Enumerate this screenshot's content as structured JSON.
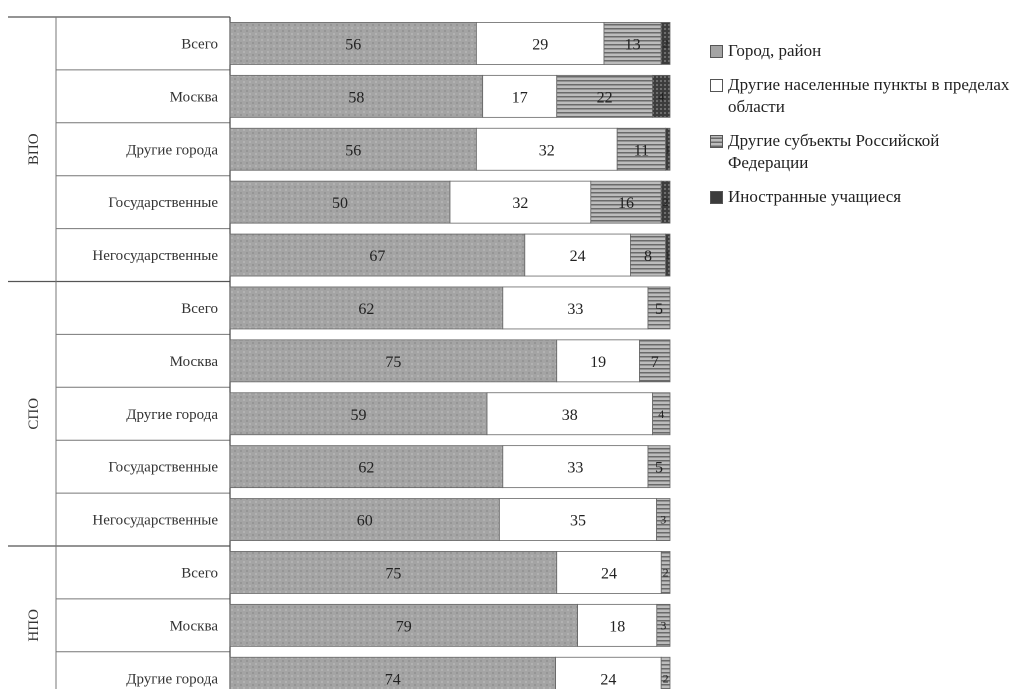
{
  "chart_data": {
    "type": "bar",
    "orientation": "horizontal",
    "stacked": true,
    "percent": true,
    "groups": [
      {
        "label": "ВПО",
        "rows": [
          {
            "label": "Всего",
            "values": [
              56,
              29,
              13,
              2
            ]
          },
          {
            "label": "Москва",
            "values": [
              58,
              17,
              22,
              4
            ]
          },
          {
            "label": "Другие города",
            "values": [
              56,
              32,
              11,
              1
            ]
          },
          {
            "label": "Государственные",
            "values": [
              50,
              32,
              16,
              2
            ]
          },
          {
            "label": "Негосударственные",
            "values": [
              67,
              24,
              8,
              1
            ]
          }
        ]
      },
      {
        "label": "СПО",
        "rows": [
          {
            "label": "Всего",
            "values": [
              62,
              33,
              5,
              0
            ]
          },
          {
            "label": "Москва",
            "values": [
              75,
              19,
              7,
              0
            ]
          },
          {
            "label": "Другие города",
            "values": [
              59,
              38,
              4,
              0
            ]
          },
          {
            "label": "Государственные",
            "values": [
              62,
              33,
              5,
              0
            ]
          },
          {
            "label": "Негосударственные",
            "values": [
              60,
              35,
              3,
              0
            ]
          }
        ]
      },
      {
        "label": "НПО",
        "rows": [
          {
            "label": "Всего",
            "values": [
              75,
              24,
              2,
              0
            ]
          },
          {
            "label": "Москва",
            "values": [
              79,
              18,
              3,
              0
            ]
          },
          {
            "label": "Другие города",
            "values": [
              74,
              24,
              2,
              0
            ]
          }
        ]
      }
    ],
    "series": [
      {
        "name": "Город, район",
        "color": "#a7a7a7"
      },
      {
        "name": "Другие населенные пункты в пределах области",
        "color": "#ffffff"
      },
      {
        "name": "Другие субъекты Российской Федерации",
        "color": "#8e8e8e"
      },
      {
        "name": "Иностранные учащиеся",
        "color": "#4a4a4a"
      }
    ],
    "legend_position": "right",
    "grid": false
  }
}
